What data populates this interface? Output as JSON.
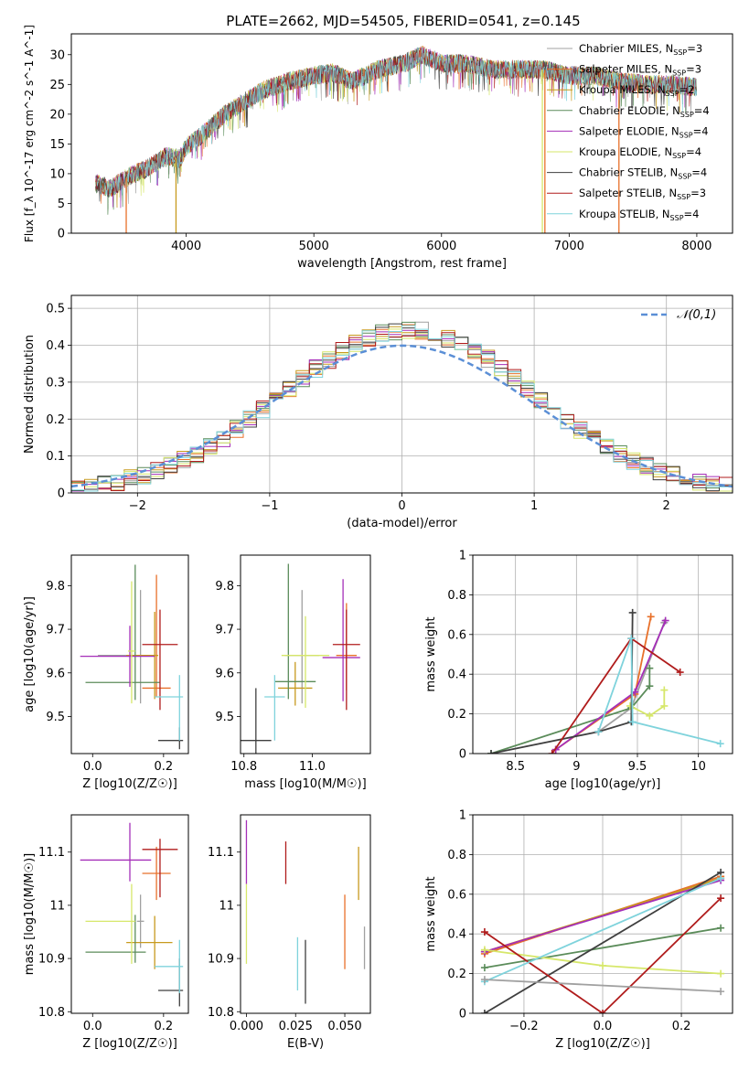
{
  "figure": {
    "title": "PLATE=2662, MJD=54505, FIBERID=0541, z=0.145",
    "models": [
      {
        "name": "Chabrier MILES, N_SSP=3",
        "color": "#a0a0a0"
      },
      {
        "name": "Salpeter MILES, N_SSP=3",
        "color": "#e8702a"
      },
      {
        "name": "Kroupa MILES, N_SSP=2",
        "color": "#c79a1e"
      },
      {
        "name": "Chabrier ELODIE, N_SSP=4",
        "color": "#5b8c5a"
      },
      {
        "name": "Salpeter ELODIE, N_SSP=4",
        "color": "#a52fb8"
      },
      {
        "name": "Kroupa ELODIE, N_SSP=4",
        "color": "#d6e76a"
      },
      {
        "name": "Chabrier STELIB, N_SSP=4",
        "color": "#3f3f3f"
      },
      {
        "name": "Salpeter STELIB, N_SSP=3",
        "color": "#b01c1c"
      },
      {
        "name": "Kroupa STELIB, N_SSP=4",
        "color": "#7fd3dc"
      }
    ]
  },
  "chart_data": [
    {
      "id": "spectrum",
      "type": "line",
      "xlabel": "wavelength [Angstrom, rest frame]",
      "ylabel": "Flux [f_λ 10^-17 erg cm^-2 s^-1 A^-1]",
      "xlim": [
        3100,
        8280
      ],
      "ylim": [
        0,
        33.5
      ],
      "xticks": [
        4000,
        5000,
        6000,
        7000,
        8000
      ],
      "yticks": [
        0,
        5,
        10,
        15,
        20,
        25,
        30
      ],
      "legend": "upper-right",
      "series_x": [
        3290,
        3400,
        3550,
        3700,
        3850,
        3950,
        4000,
        4150,
        4300,
        4450,
        4600,
        4800,
        5000,
        5150,
        5300,
        5500,
        5700,
        5850,
        6000,
        6200,
        6400,
        6600,
        6800,
        7000,
        7200,
        7400,
        7600,
        7800,
        8000
      ],
      "series_y": [
        8.5,
        7.5,
        9.5,
        11.0,
        13.0,
        12.5,
        14.5,
        17.0,
        20.0,
        22.0,
        24.0,
        25.5,
        26.5,
        27.0,
        25.5,
        27.5,
        28.5,
        30.0,
        28.5,
        28.5,
        27.5,
        27.5,
        27.5,
        26.5,
        26.5,
        25.5,
        25.0,
        25.0,
        24.5
      ],
      "dropouts": [
        {
          "series": "Salpeter MILES, N_SSP=3",
          "x": 3530
        },
        {
          "series": "Kroupa MILES, N_SSP=2",
          "x": 3920
        },
        {
          "series": "Kroupa ELODIE, N_SSP=4",
          "x": 6790
        },
        {
          "series": "Salpeter MILES, N_SSP=3",
          "x": 6810
        },
        {
          "series": "Salpeter MILES, N_SSP=3",
          "x": 7390
        }
      ]
    },
    {
      "id": "residuals",
      "type": "line",
      "xlabel": "(data-model)/error",
      "ylabel": "Normed distribution",
      "xlim": [
        -2.5,
        2.5
      ],
      "ylim": [
        0,
        0.535
      ],
      "xticks": [
        -2,
        -1,
        0,
        1,
        2
      ],
      "yticks": [
        0.0,
        0.1,
        0.2,
        0.3,
        0.4,
        0.5
      ],
      "grid": true,
      "legend": "upper-right",
      "reference": {
        "label": "𝒩(0,1)",
        "mean": 0,
        "sigma": 1,
        "color": "#5b8fd6"
      },
      "bin_width": 0.1
    },
    {
      "id": "age-vs-Z",
      "type": "scatter",
      "xlabel": "Z [log10(Z/Z☉)]",
      "ylabel": "age [log10(age/yr)]",
      "xlim": [
        -0.06,
        0.27
      ],
      "ylim": [
        9.415,
        9.87
      ],
      "xticks": [
        0.0,
        0.2
      ],
      "xtick_labels": [
        "0.0",
        "0.2"
      ],
      "yticks": [
        9.5,
        9.6,
        9.7,
        9.8
      ],
      "points": [
        {
          "series": "Chabrier MILES, N_SSP=3",
          "x": 0.135,
          "y": 9.64,
          "xerr": [
            0.12,
            0.04
          ],
          "yerr": [
            0.11,
            0.15
          ]
        },
        {
          "series": "Salpeter MILES, N_SSP=3",
          "x": 0.18,
          "y": 9.565,
          "xerr": [
            0.04,
            0.04
          ],
          "yerr": [
            0.02,
            0.26
          ]
        },
        {
          "series": "Kroupa MILES, N_SSP=2",
          "x": 0.175,
          "y": 9.64,
          "xerr": [
            0.08,
            0.01
          ],
          "yerr": [
            0.1,
            0.1
          ]
        },
        {
          "series": "Chabrier ELODIE, N_SSP=4",
          "x": 0.12,
          "y": 9.578,
          "xerr": [
            0.14,
            0.07
          ],
          "yerr": [
            0.04,
            0.27
          ]
        },
        {
          "series": "Salpeter ELODIE, N_SSP=4",
          "x": 0.105,
          "y": 9.638,
          "xerr": [
            0.14,
            0.07
          ],
          "yerr": [
            0.07,
            0.07
          ]
        },
        {
          "series": "Kroupa ELODIE, N_SSP=4",
          "x": 0.11,
          "y": 9.65,
          "xerr": [
            0.01,
            0.01
          ],
          "yerr": [
            0.12,
            0.16
          ]
        },
        {
          "series": "Chabrier STELIB, N_SSP=4",
          "x": 0.245,
          "y": 9.445,
          "xerr": [
            0.06,
            0.01
          ],
          "yerr": [
            0.02,
            0.03
          ]
        },
        {
          "series": "Salpeter STELIB, N_SSP=3",
          "x": 0.19,
          "y": 9.665,
          "xerr": [
            0.05,
            0.05
          ],
          "yerr": [
            0.15,
            0.08
          ]
        },
        {
          "series": "Kroupa STELIB, N_SSP=4",
          "x": 0.245,
          "y": 9.545,
          "xerr": [
            0.07,
            0.01
          ],
          "yerr": [
            0.1,
            0.05
          ]
        }
      ]
    },
    {
      "id": "age-vs-mass",
      "type": "scatter",
      "xlabel": "mass [log10(M/M☉)]",
      "ylabel": "",
      "xlim": [
        10.79,
        11.17
      ],
      "ylim": [
        9.415,
        9.87
      ],
      "xticks": [
        10.8,
        11.0
      ],
      "xtick_labels": [
        "10.8",
        "11.0"
      ],
      "yticks": [
        9.5,
        9.6,
        9.7,
        9.8
      ],
      "points": [
        {
          "series": "Chabrier MILES, N_SSP=3",
          "x": 10.97,
          "y": 9.64,
          "xerr": [
            0.05,
            0.05
          ],
          "yerr": [
            0.11,
            0.15
          ]
        },
        {
          "series": "Salpeter MILES, N_SSP=3",
          "x": 11.1,
          "y": 9.64,
          "xerr": [
            0.03,
            0.03
          ],
          "yerr": [
            0.08,
            0.12
          ]
        },
        {
          "series": "Kroupa MILES, N_SSP=2",
          "x": 10.95,
          "y": 9.565,
          "xerr": [
            0.05,
            0.05
          ],
          "yerr": [
            0.04,
            0.06
          ]
        },
        {
          "series": "Chabrier ELODIE, N_SSP=4",
          "x": 10.93,
          "y": 9.58,
          "xerr": [
            0.04,
            0.08
          ],
          "yerr": [
            0.04,
            0.27
          ]
        },
        {
          "series": "Salpeter ELODIE, N_SSP=4",
          "x": 11.09,
          "y": 9.635,
          "xerr": [
            0.06,
            0.05
          ],
          "yerr": [
            0.1,
            0.18
          ]
        },
        {
          "series": "Kroupa ELODIE, N_SSP=4",
          "x": 10.98,
          "y": 9.64,
          "xerr": [
            0.07,
            0.07
          ],
          "yerr": [
            0.12,
            0.09
          ]
        },
        {
          "series": "Chabrier STELIB, N_SSP=4",
          "x": 10.835,
          "y": 9.445,
          "xerr": [
            0.045,
            0.045
          ],
          "yerr": [
            0.03,
            0.12
          ]
        },
        {
          "series": "Salpeter STELIB, N_SSP=3",
          "x": 11.1,
          "y": 9.665,
          "xerr": [
            0.04,
            0.04
          ],
          "yerr": [
            0.15,
            0.08
          ]
        },
        {
          "series": "Kroupa STELIB, N_SSP=4",
          "x": 10.89,
          "y": 9.545,
          "xerr": [
            0.03,
            0.03
          ],
          "yerr": [
            0.1,
            0.05
          ]
        }
      ]
    },
    {
      "id": "massweight-vs-age",
      "type": "line",
      "xlabel": "age [log10(age/yr)]",
      "ylabel": "mass weight",
      "xlim": [
        8.15,
        10.28
      ],
      "ylim": [
        0,
        1.0
      ],
      "xticks": [
        8.5,
        9.0,
        9.5,
        10.0
      ],
      "yticks": [
        0.0,
        0.2,
        0.4,
        0.6,
        0.8,
        1.0
      ],
      "grid": true,
      "series": [
        {
          "name": "Chabrier MILES, N_SSP=3",
          "x": [
            9.18,
            9.45,
            9.72
          ],
          "y": [
            0.11,
            0.23,
            0.66
          ]
        },
        {
          "name": "Salpeter MILES, N_SSP=3",
          "x": [
            8.83,
            9.48,
            9.61
          ],
          "y": [
            0.02,
            0.3,
            0.69
          ]
        },
        {
          "name": "Chabrier ELODIE, N_SSP=4",
          "x": [
            8.3,
            9.45,
            9.6,
            9.6
          ],
          "y": [
            0.0,
            0.23,
            0.34,
            0.43
          ]
        },
        {
          "name": "Salpeter ELODIE, N_SSP=4",
          "x": [
            8.83,
            9.48,
            9.73
          ],
          "y": [
            0.02,
            0.31,
            0.67
          ]
        },
        {
          "name": "Kroupa ELODIE, N_SSP=4",
          "x": [
            9.44,
            9.6,
            9.72,
            9.72
          ],
          "y": [
            0.24,
            0.19,
            0.24,
            0.32
          ]
        },
        {
          "name": "Chabrier STELIB, N_SSP=4",
          "x": [
            8.3,
            9.18,
            9.45,
            9.46
          ],
          "y": [
            0.0,
            0.11,
            0.16,
            0.71
          ]
        },
        {
          "name": "Salpeter STELIB, N_SSP=3",
          "x": [
            8.8,
            9.45,
            9.85
          ],
          "y": [
            0.0,
            0.58,
            0.41
          ]
        },
        {
          "name": "Kroupa STELIB, N_SSP=4",
          "x": [
            9.18,
            9.45,
            9.46,
            10.18
          ],
          "y": [
            0.11,
            0.58,
            0.16,
            0.05
          ]
        }
      ]
    },
    {
      "id": "mass-vs-Z",
      "type": "scatter",
      "xlabel": "Z [log10(Z/Z☉)]",
      "ylabel": "mass [log10(M/M☉)]",
      "xlim": [
        -0.06,
        0.27
      ],
      "ylim": [
        10.797,
        11.17
      ],
      "xticks": [
        0.0,
        0.2
      ],
      "xtick_labels": [
        "0.0",
        "0.2"
      ],
      "yticks": [
        10.8,
        10.9,
        11.0,
        11.1
      ],
      "points": [
        {
          "series": "Chabrier MILES, N_SSP=3",
          "x": 0.135,
          "y": 10.97,
          "xerr": [
            0.01,
            0.01
          ],
          "yerr": [
            0.05,
            0.05
          ]
        },
        {
          "series": "Salpeter MILES, N_SSP=3",
          "x": 0.18,
          "y": 11.06,
          "xerr": [
            0.04,
            0.04
          ],
          "yerr": [
            0.05,
            0.05
          ]
        },
        {
          "series": "Kroupa MILES, N_SSP=2",
          "x": 0.175,
          "y": 10.93,
          "xerr": [
            0.08,
            0.05
          ],
          "yerr": [
            0.05,
            0.05
          ]
        },
        {
          "series": "Chabrier ELODIE, N_SSP=4",
          "x": 0.12,
          "y": 10.912,
          "xerr": [
            0.14,
            0.03
          ],
          "yerr": [
            0.02,
            0.07
          ]
        },
        {
          "series": "Salpeter ELODIE, N_SSP=4",
          "x": 0.105,
          "y": 11.085,
          "xerr": [
            0.14,
            0.06
          ],
          "yerr": [
            0.04,
            0.07
          ]
        },
        {
          "series": "Kroupa ELODIE, N_SSP=4",
          "x": 0.11,
          "y": 10.97,
          "xerr": [
            0.13,
            0.01
          ],
          "yerr": [
            0.08,
            0.07
          ]
        },
        {
          "series": "Chabrier STELIB, N_SSP=4",
          "x": 0.245,
          "y": 10.84,
          "xerr": [
            0.06,
            0.01
          ],
          "yerr": [
            0.03,
            0.06
          ]
        },
        {
          "series": "Salpeter STELIB, N_SSP=3",
          "x": 0.19,
          "y": 11.105,
          "xerr": [
            0.05,
            0.05
          ],
          "yerr": [
            0.09,
            0.02
          ]
        },
        {
          "series": "Kroupa STELIB, N_SSP=4",
          "x": 0.245,
          "y": 10.885,
          "xerr": [
            0.07,
            0.01
          ],
          "yerr": [
            0.05,
            0.05
          ]
        }
      ]
    },
    {
      "id": "mass-vs-ebv",
      "type": "scatter",
      "xlabel": "E(B-V)",
      "ylabel": "",
      "xlim": [
        -0.003,
        0.063
      ],
      "ylim": [
        10.797,
        11.17
      ],
      "xticks": [
        0.0,
        0.025,
        0.05
      ],
      "xtick_labels": [
        "0.000",
        "0.025",
        "0.050"
      ],
      "yticks": [
        10.8,
        10.9,
        11.0,
        11.1
      ],
      "points": [
        {
          "series": "Salpeter ELODIE, N_SSP=4",
          "x": 0.0,
          "y": 11.08,
          "xerr": [
            0,
            0
          ],
          "yerr": [
            0.04,
            0.08
          ]
        },
        {
          "series": "Kroupa ELODIE, N_SSP=4",
          "x": 0.0,
          "y": 10.97,
          "xerr": [
            0,
            0
          ],
          "yerr": [
            0.08,
            0.07
          ]
        },
        {
          "series": "Salpeter STELIB, N_SSP=3",
          "x": 0.02,
          "y": 11.08,
          "xerr": [
            0,
            0
          ],
          "yerr": [
            0.04,
            0.04
          ]
        },
        {
          "series": "Kroupa STELIB, N_SSP=4",
          "x": 0.026,
          "y": 10.89,
          "xerr": [
            0,
            0
          ],
          "yerr": [
            0.05,
            0.05
          ]
        },
        {
          "series": "Chabrier STELIB, N_SSP=4",
          "x": 0.03,
          "y": 10.865,
          "xerr": [
            0,
            0
          ],
          "yerr": [
            0.05,
            0.07
          ]
        },
        {
          "series": "Salpeter MILES, N_SSP=3",
          "x": 0.05,
          "y": 10.95,
          "xerr": [
            0,
            0
          ],
          "yerr": [
            0.07,
            0.07
          ]
        },
        {
          "series": "Kroupa MILES, N_SSP=2",
          "x": 0.057,
          "y": 11.06,
          "xerr": [
            0,
            0
          ],
          "yerr": [
            0.05,
            0.05
          ]
        },
        {
          "series": "Chabrier MILES, N_SSP=3",
          "x": 0.06,
          "y": 10.92,
          "xerr": [
            0,
            0
          ],
          "yerr": [
            0.04,
            0.04
          ]
        }
      ]
    },
    {
      "id": "massweight-vs-Z",
      "type": "line",
      "xlabel": "Z [log10(Z/Z☉)]",
      "ylabel": "mass weight",
      "xlim": [
        -0.33,
        0.33
      ],
      "ylim": [
        0,
        1.0
      ],
      "xticks": [
        -0.2,
        0.0,
        0.2
      ],
      "xtick_labels": [
        "−0.2",
        "0.0",
        "0.2"
      ],
      "yticks": [
        0.0,
        0.2,
        0.4,
        0.6,
        0.8,
        1.0
      ],
      "grid": true,
      "series": [
        {
          "name": "Salpeter MILES, N_SSP=3",
          "x": [
            -0.3,
            0.3
          ],
          "y": [
            0.3,
            0.69
          ]
        },
        {
          "name": "Kroupa MILES, N_SSP=2",
          "x": [
            -0.3,
            0.3
          ],
          "y": [
            0.31,
            0.68
          ]
        },
        {
          "name": "Chabrier ELODIE, N_SSP=4",
          "x": [
            -0.3,
            0.3
          ],
          "y": [
            0.23,
            0.43
          ]
        },
        {
          "name": "Salpeter ELODIE, N_SSP=4",
          "x": [
            -0.3,
            0.3
          ],
          "y": [
            0.31,
            0.67
          ]
        },
        {
          "name": "Kroupa ELODIE, N_SSP=4",
          "x": [
            -0.3,
            0.0,
            0.3
          ],
          "y": [
            0.32,
            0.24,
            0.2
          ]
        },
        {
          "name": "Chabrier STELIB, N_SSP=4",
          "x": [
            -0.3,
            0.3
          ],
          "y": [
            0.0,
            0.71
          ]
        },
        {
          "name": "Salpeter STELIB, N_SSP=3",
          "x": [
            -0.3,
            0.0,
            0.3
          ],
          "y": [
            0.41,
            0.0,
            0.58
          ]
        },
        {
          "name": "Kroupa STELIB, N_SSP=4",
          "x": [
            -0.3,
            0.3
          ],
          "y": [
            0.16,
            0.68
          ]
        },
        {
          "name": "Chabrier MILES, N_SSP=3",
          "x": [
            -0.3,
            0.3
          ],
          "y": [
            0.17,
            0.11
          ]
        }
      ]
    }
  ]
}
